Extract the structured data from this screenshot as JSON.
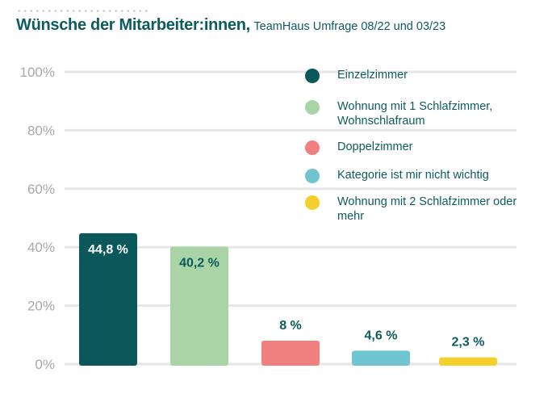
{
  "title": {
    "main": "Wünsche der Mitarbeiter:innen,",
    "sub": "TeamHaus Umfrage 08/22 und 03/23"
  },
  "chart_data": {
    "type": "bar",
    "categories": [
      "Einzelzimmer",
      "Wohnung mit 1 Schlafzimmer, Wohnschlafraum",
      "Doppelzimmer",
      "Kategorie ist mir nicht wichtig",
      "Wohnung mit 2 Schlafzimmer oder mehr"
    ],
    "values": [
      44.8,
      40.2,
      8,
      4.6,
      2.3
    ],
    "data_labels": [
      "44,8 %",
      "40,2 %",
      "8 %",
      "4,6 %",
      "2,3 %"
    ],
    "colors": [
      "#0b585b",
      "#a9d4a6",
      "#f08080",
      "#6ec5cf",
      "#f4cf2e"
    ],
    "label_colors": [
      "#ffffff",
      "#0d5b5e",
      "#0d5b5e",
      "#0d5b5e",
      "#0d5b5e"
    ],
    "yticks": [
      0,
      20,
      40,
      60,
      80,
      100
    ],
    "ytick_labels": [
      "0%",
      "20%",
      "40%",
      "60%",
      "80%",
      "100%"
    ],
    "ylim": [
      0,
      100
    ],
    "grid": true,
    "legend_placement": "top-right",
    "legend": [
      "Einzelzimmer",
      "Wohnung mit 1 Schlafzimmer, Wohnschlafraum",
      "Doppelzimmer",
      "Kategorie ist mir nicht wichtig",
      "Wohnung mit 2 Schlafzimmer oder mehr"
    ]
  }
}
